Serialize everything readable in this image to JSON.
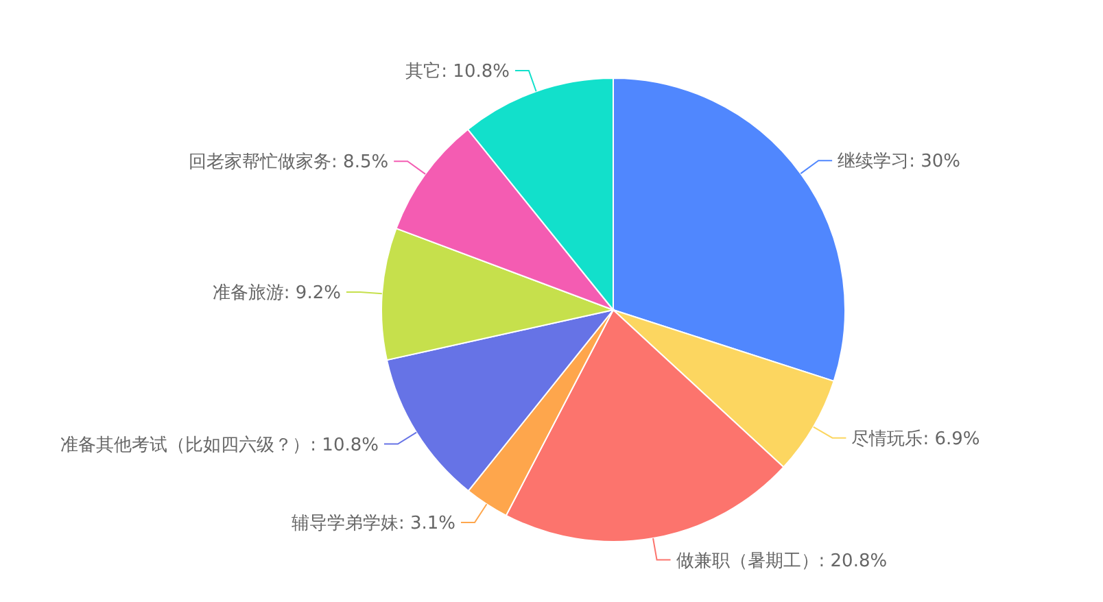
{
  "chart_data": {
    "type": "pie",
    "categories": [
      "继续学习",
      "尽情玩乐",
      "做兼职（暑期工）",
      "辅导学弟学妹",
      "准备其他考试（比如四六级？）",
      "准备旅游",
      "回老家帮忙做家务",
      "其它"
    ],
    "values": [
      30,
      6.9,
      20.8,
      3.1,
      10.8,
      9.2,
      8.5,
      10.8
    ],
    "value_labels": [
      "30%",
      "6.9%",
      "20.8%",
      "3.1%",
      "10.8%",
      "9.2%",
      "8.5%",
      "10.8%"
    ],
    "colors": [
      "#5087fe",
      "#fcd660",
      "#fc746d",
      "#fea64c",
      "#6673e6",
      "#c6e04c",
      "#f45cb2",
      "#12e0cb"
    ]
  }
}
